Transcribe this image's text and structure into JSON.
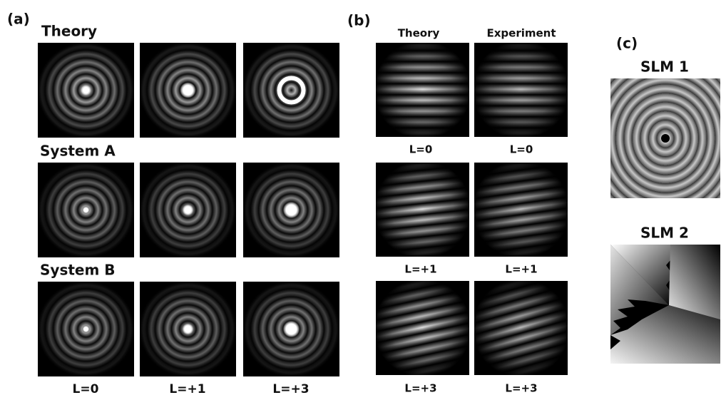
{
  "panel_a": {
    "label": "(a)",
    "row_titles": [
      "Theory",
      "System A",
      "System B"
    ],
    "column_labels": [
      "L=0",
      "L=+1",
      "L=+3"
    ]
  },
  "panel_b": {
    "label": "(b)",
    "column_titles": [
      "Theory",
      "Experiment"
    ],
    "row_labels": [
      [
        "L=0",
        "L=0"
      ],
      [
        "L=+1",
        "L=+1"
      ],
      [
        "L=+3",
        "L=+3"
      ]
    ]
  },
  "panel_c": {
    "label": "(c)",
    "titles": [
      "SLM 1",
      "SLM 2"
    ]
  }
}
